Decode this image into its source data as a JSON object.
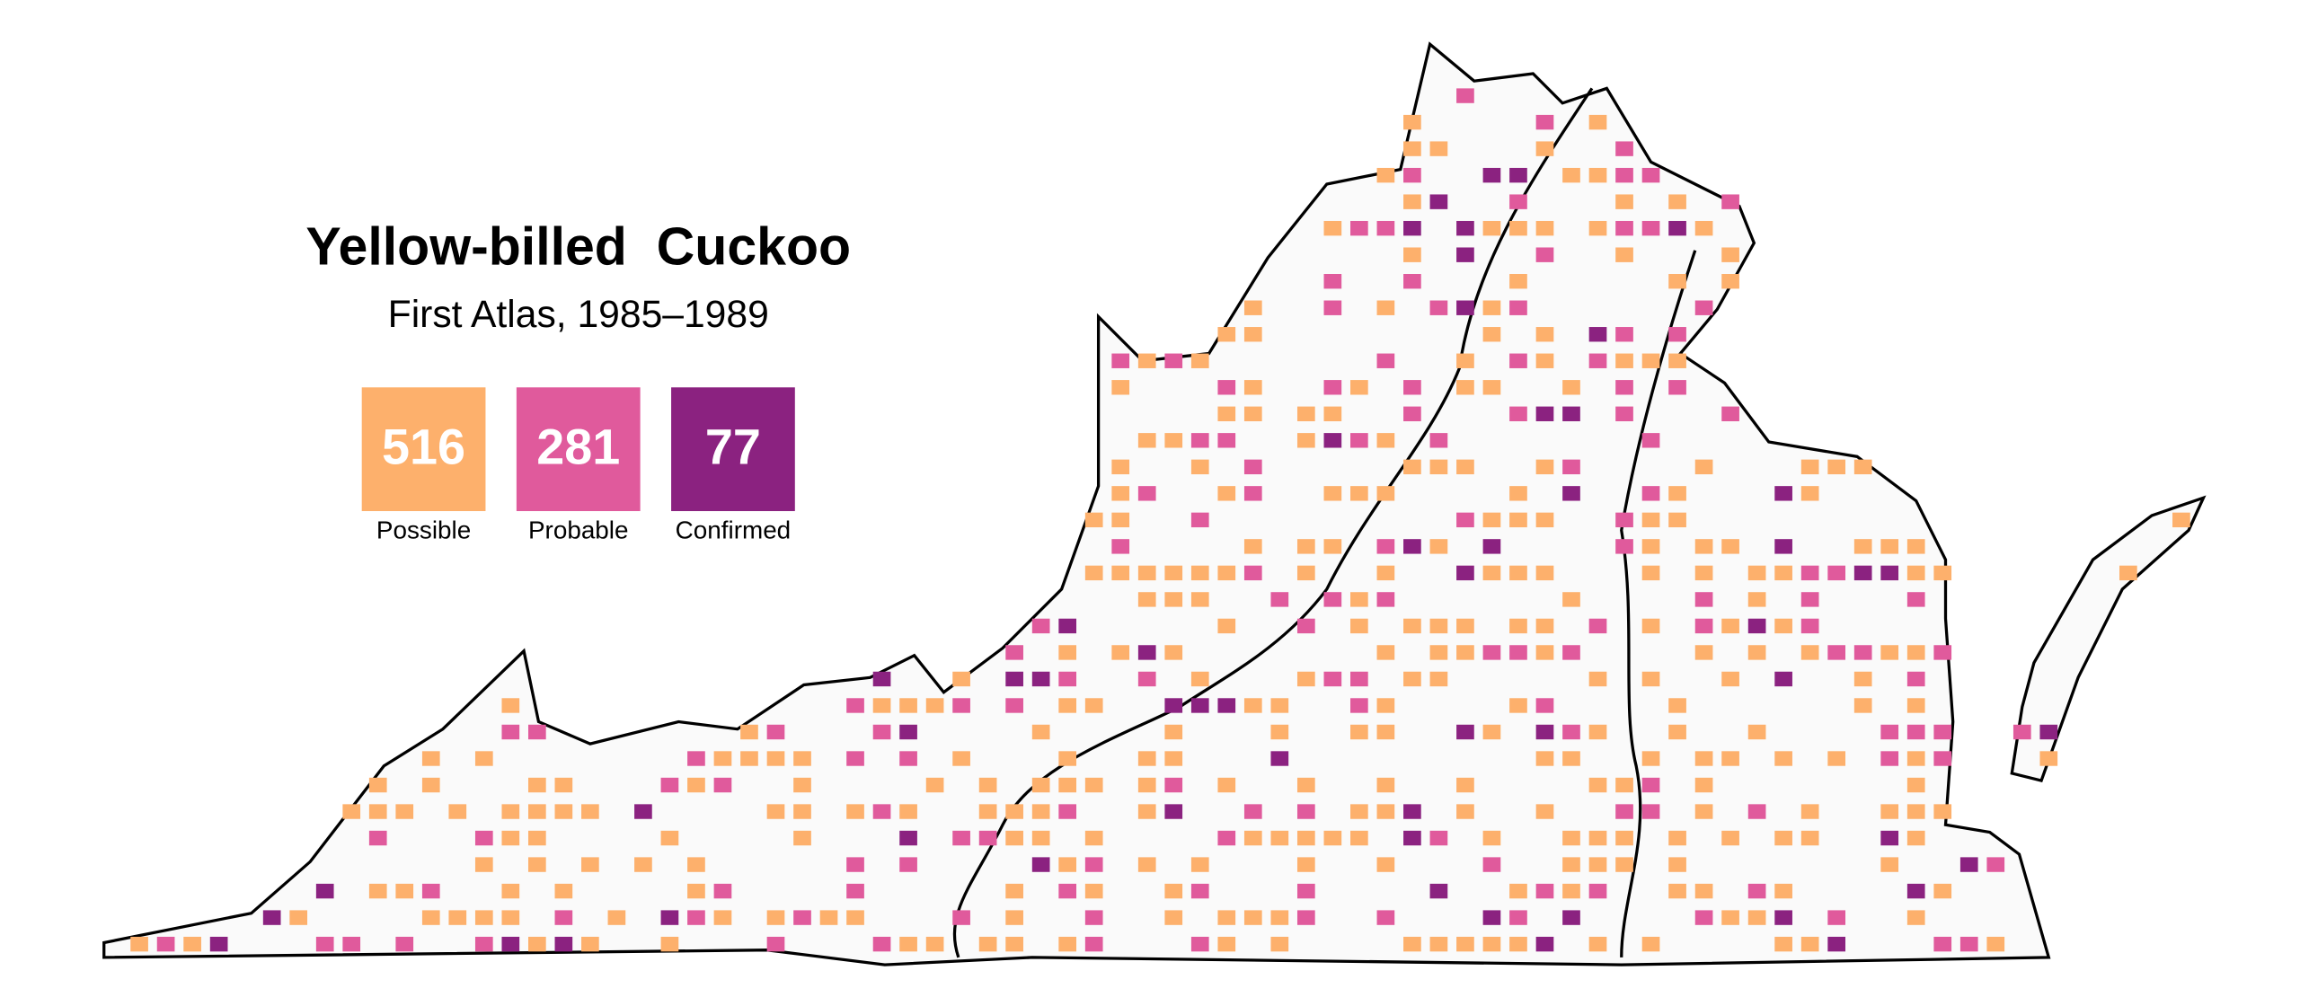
{
  "title": "Yellow-billed  Cuckoo",
  "subtitle": "First Atlas, 1985–1989",
  "legend": [
    {
      "count": "516",
      "label": "Possible",
      "color": "#fdb06c"
    },
    {
      "count": "281",
      "label": "Probable",
      "color": "#e05a9c"
    },
    {
      "count": "77",
      "label": "Confirmed",
      "color": "#8b2280"
    }
  ]
}
